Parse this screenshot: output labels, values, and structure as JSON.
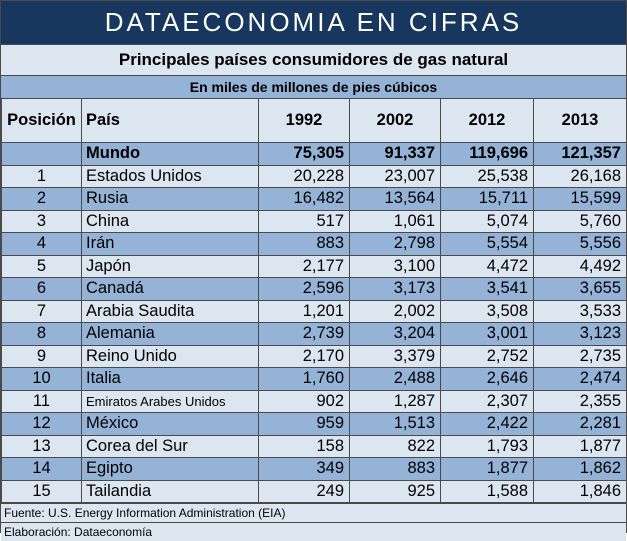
{
  "banner": "DATAECONOMIA EN CIFRAS",
  "title": "Principales países consumidores de gas natural",
  "unit": "En miles de millones de pies cúbicos",
  "headers": [
    "Posición",
    "País",
    "1992",
    "2002",
    "2012",
    "2013"
  ],
  "world": {
    "pos": "",
    "country": "Mundo",
    "v1992": "75,305",
    "v2002": "91,337",
    "v2012": "119,696",
    "v2013": "121,357"
  },
  "rows": [
    {
      "pos": "1",
      "country": "Estados Unidos",
      "v1992": "20,228",
      "v2002": "23,007",
      "v2012": "25,538",
      "v2013": "26,168"
    },
    {
      "pos": "2",
      "country": "Rusia",
      "v1992": "16,482",
      "v2002": "13,564",
      "v2012": "15,711",
      "v2013": "15,599"
    },
    {
      "pos": "3",
      "country": "China",
      "v1992": "517",
      "v2002": "1,061",
      "v2012": "5,074",
      "v2013": "5,760"
    },
    {
      "pos": "4",
      "country": "Irán",
      "v1992": "883",
      "v2002": "2,798",
      "v2012": "5,554",
      "v2013": "5,556"
    },
    {
      "pos": "5",
      "country": "Japón",
      "v1992": "2,177",
      "v2002": "3,100",
      "v2012": "4,472",
      "v2013": "4,492"
    },
    {
      "pos": "6",
      "country": "Canadá",
      "v1992": "2,596",
      "v2002": "3,173",
      "v2012": "3,541",
      "v2013": "3,655"
    },
    {
      "pos": "7",
      "country": "Arabia Saudita",
      "v1992": "1,201",
      "v2002": "2,002",
      "v2012": "3,508",
      "v2013": "3,533"
    },
    {
      "pos": "8",
      "country": "Alemania",
      "v1992": "2,739",
      "v2002": "3,204",
      "v2012": "3,001",
      "v2013": "3,123"
    },
    {
      "pos": "9",
      "country": "Reino Unido",
      "v1992": "2,170",
      "v2002": "3,379",
      "v2012": "2,752",
      "v2013": "2,735"
    },
    {
      "pos": "10",
      "country": "Italia",
      "v1992": "1,760",
      "v2002": "2,488",
      "v2012": "2,646",
      "v2013": "2,474"
    },
    {
      "pos": "11",
      "country": "Emiratos Arabes Unidos",
      "v1992": "902",
      "v2002": "1,287",
      "v2012": "2,307",
      "v2013": "2,355"
    },
    {
      "pos": "12",
      "country": "México",
      "v1992": "959",
      "v2002": "1,513",
      "v2012": "2,422",
      "v2013": "2,281"
    },
    {
      "pos": "13",
      "country": "Corea del Sur",
      "v1992": "158",
      "v2002": "822",
      "v2012": "1,793",
      "v2013": "1,877"
    },
    {
      "pos": "14",
      "country": "Egipto",
      "v1992": "349",
      "v2002": "883",
      "v2012": "1,877",
      "v2013": "1,862"
    },
    {
      "pos": "15",
      "country": "Tailandia",
      "v1992": "249",
      "v2002": "925",
      "v2012": "1,588",
      "v2013": "1,846"
    }
  ],
  "footer": {
    "source": "Fuente: U.S. Energy Information Administration (EIA)",
    "credit": "Elaboración: Dataeconomía"
  },
  "colors": {
    "banner_bg": "#17375e",
    "light_row": "#dce6f1",
    "dark_row": "#95b3d7"
  }
}
